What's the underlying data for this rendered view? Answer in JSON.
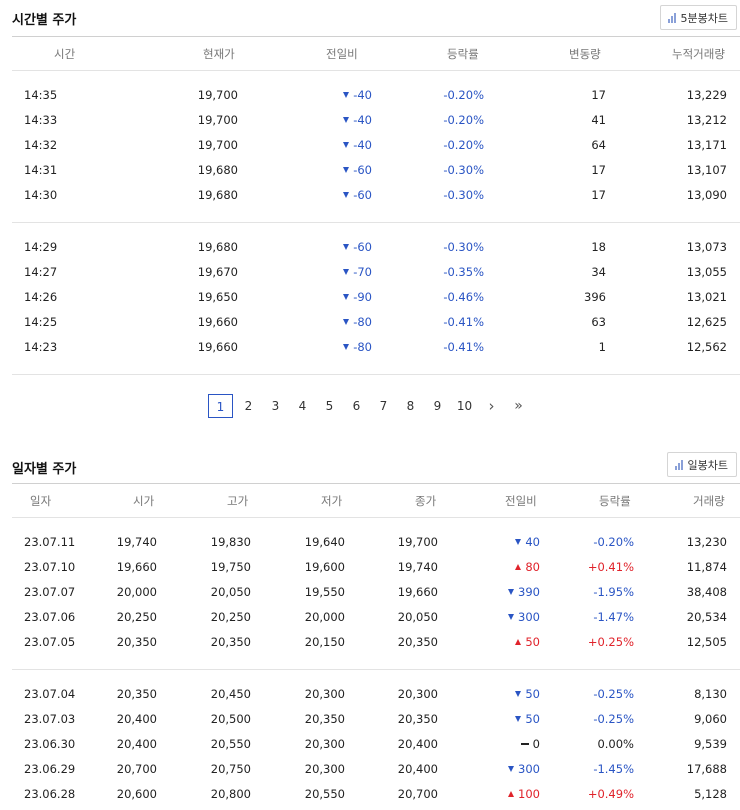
{
  "hourly": {
    "title": "시간별 주가",
    "chart_button": "5분봉차트",
    "columns": [
      "시간",
      "현재가",
      "전일비",
      "등락률",
      "변동량",
      "누적거래량"
    ],
    "groups": [
      [
        {
          "time": "14:35",
          "price": "19,700",
          "dir": "dn",
          "change": "-40",
          "rate": "-0.20%",
          "vol": "17",
          "cum": "13,229"
        },
        {
          "time": "14:33",
          "price": "19,700",
          "dir": "dn",
          "change": "-40",
          "rate": "-0.20%",
          "vol": "41",
          "cum": "13,212"
        },
        {
          "time": "14:32",
          "price": "19,700",
          "dir": "dn",
          "change": "-40",
          "rate": "-0.20%",
          "vol": "64",
          "cum": "13,171"
        },
        {
          "time": "14:31",
          "price": "19,680",
          "dir": "dn",
          "change": "-60",
          "rate": "-0.30%",
          "vol": "17",
          "cum": "13,107"
        },
        {
          "time": "14:30",
          "price": "19,680",
          "dir": "dn",
          "change": "-60",
          "rate": "-0.30%",
          "vol": "17",
          "cum": "13,090"
        }
      ],
      [
        {
          "time": "14:29",
          "price": "19,680",
          "dir": "dn",
          "change": "-60",
          "rate": "-0.30%",
          "vol": "18",
          "cum": "13,073"
        },
        {
          "time": "14:27",
          "price": "19,670",
          "dir": "dn",
          "change": "-70",
          "rate": "-0.35%",
          "vol": "34",
          "cum": "13,055"
        },
        {
          "time": "14:26",
          "price": "19,650",
          "dir": "dn",
          "change": "-90",
          "rate": "-0.46%",
          "vol": "396",
          "cum": "13,021"
        },
        {
          "time": "14:25",
          "price": "19,660",
          "dir": "dn",
          "change": "-80",
          "rate": "-0.41%",
          "vol": "63",
          "cum": "12,625"
        },
        {
          "time": "14:23",
          "price": "19,660",
          "dir": "dn",
          "change": "-80",
          "rate": "-0.41%",
          "vol": "1",
          "cum": "12,562"
        }
      ]
    ],
    "pagination": {
      "pages": [
        "1",
        "2",
        "3",
        "4",
        "5",
        "6",
        "7",
        "8",
        "9",
        "10"
      ],
      "current": "1",
      "next": "›",
      "last": "»"
    }
  },
  "daily": {
    "title": "일자별 주가",
    "chart_button": "일봉차트",
    "columns": [
      "일자",
      "시가",
      "고가",
      "저가",
      "종가",
      "전일비",
      "등락률",
      "거래량"
    ],
    "groups": [
      [
        {
          "date": "23.07.11",
          "open": "19,740",
          "high": "19,830",
          "low": "19,640",
          "close": "19,700",
          "dir": "dn",
          "change": "40",
          "rate": "-0.20%",
          "vol": "13,230"
        },
        {
          "date": "23.07.10",
          "open": "19,660",
          "high": "19,750",
          "low": "19,600",
          "close": "19,740",
          "dir": "up",
          "change": "80",
          "rate": "+0.41%",
          "vol": "11,874"
        },
        {
          "date": "23.07.07",
          "open": "20,000",
          "high": "20,050",
          "low": "19,550",
          "close": "19,660",
          "dir": "dn",
          "change": "390",
          "rate": "-1.95%",
          "vol": "38,408"
        },
        {
          "date": "23.07.06",
          "open": "20,250",
          "high": "20,250",
          "low": "20,000",
          "close": "20,050",
          "dir": "dn",
          "change": "300",
          "rate": "-1.47%",
          "vol": "20,534"
        },
        {
          "date": "23.07.05",
          "open": "20,350",
          "high": "20,350",
          "low": "20,150",
          "close": "20,350",
          "dir": "up",
          "change": "50",
          "rate": "+0.25%",
          "vol": "12,505"
        }
      ],
      [
        {
          "date": "23.07.04",
          "open": "20,350",
          "high": "20,450",
          "low": "20,300",
          "close": "20,300",
          "dir": "dn",
          "change": "50",
          "rate": "-0.25%",
          "vol": "8,130"
        },
        {
          "date": "23.07.03",
          "open": "20,400",
          "high": "20,500",
          "low": "20,350",
          "close": "20,350",
          "dir": "dn",
          "change": "50",
          "rate": "-0.25%",
          "vol": "9,060"
        },
        {
          "date": "23.06.30",
          "open": "20,400",
          "high": "20,550",
          "low": "20,300",
          "close": "20,400",
          "dir": "flat",
          "change": "0",
          "rate": "0.00%",
          "vol": "9,539"
        },
        {
          "date": "23.06.29",
          "open": "20,700",
          "high": "20,750",
          "low": "20,300",
          "close": "20,400",
          "dir": "dn",
          "change": "300",
          "rate": "-1.45%",
          "vol": "17,688"
        },
        {
          "date": "23.06.28",
          "open": "20,600",
          "high": "20,800",
          "low": "20,550",
          "close": "20,700",
          "dir": "up",
          "change": "100",
          "rate": "+0.49%",
          "vol": "5,128"
        }
      ]
    ]
  }
}
